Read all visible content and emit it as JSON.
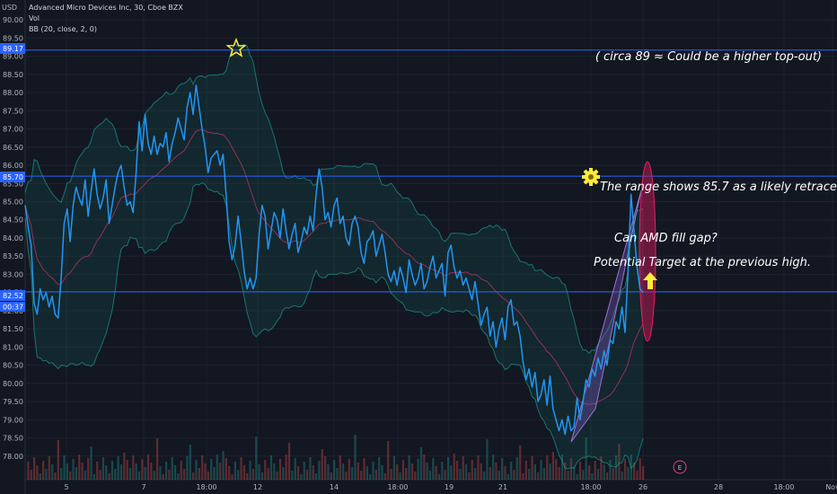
{
  "header": {
    "currency": "USD",
    "title": "Advanced Micro Devices Inc, 30, Cboe BZX",
    "vol_label": "Vol",
    "bb_label": "BB (20, close, 2, 0)"
  },
  "colors": {
    "background": "#131722",
    "price_line": "#2196f3",
    "bb_basis": "#b2365e",
    "bb_band": "#199b8f",
    "bb_fill": "#0f4a44",
    "hline": "#2962ff",
    "star": "#ffeb3b",
    "badge": "#2962ff",
    "gear": "#ffeb3b",
    "arrow": "#ffeb3b",
    "triangle": "#7e57c2",
    "ellipse": "#d81b60"
  },
  "annotations": {
    "top_note": "( circa 89 ≈ Could be a higher top-out)",
    "range_note": "The range shows 85.7 as a likely retrace.",
    "gap_question": "Can AMD fill gap?",
    "target_note": "Potential Target at the previous high."
  },
  "price_badges": {
    "level_high": "89.17",
    "level_range": "85.70",
    "level_low": "82.52",
    "countdown": "00:37"
  },
  "e_marker": "E",
  "chart_data": {
    "type": "line",
    "y_axis_ticks": [
      "90.00",
      "89.50",
      "89.00",
      "88.50",
      "88.00",
      "87.50",
      "87.00",
      "86.50",
      "86.00",
      "85.50",
      "85.00",
      "84.50",
      "84.00",
      "83.50",
      "83.00",
      "82.50",
      "82.00",
      "81.50",
      "81.00",
      "80.50",
      "80.00",
      "79.50",
      "79.00",
      "78.50",
      "78.00"
    ],
    "ylim": [
      77.7,
      90.2
    ],
    "x_ticks": [
      "5",
      "7",
      "18:00",
      "12",
      "14",
      "18:00",
      "19",
      "21",
      "18:00",
      "26",
      "28",
      "18:00",
      "Nov"
    ],
    "horizontal_levels": [
      89.17,
      85.7,
      82.52
    ],
    "series": [
      {
        "values": [
          84.9,
          84.3,
          83.8,
          82.2,
          81.9,
          82.6,
          82.3,
          82.5,
          82.1,
          82.4,
          81.9,
          81.8,
          82.9,
          84.4,
          84.8,
          83.9,
          84.9,
          85.4,
          85.1,
          84.9,
          85.6,
          84.6,
          85.3,
          85.9,
          85.2,
          84.8,
          85.1,
          85.6,
          84.4,
          84.9,
          85.4,
          85.8,
          86.0,
          85.4,
          84.9,
          85.0,
          84.7,
          85.8,
          87.2,
          86.4,
          87.4,
          86.6,
          86.3,
          86.8,
          86.3,
          86.6,
          86.5,
          86.9,
          86.1,
          86.6,
          86.9,
          87.3,
          87.0,
          86.7,
          87.6,
          88.0,
          87.4,
          88.2,
          87.6,
          87.0,
          86.5,
          85.8,
          86.2,
          86.3,
          86.4,
          86.0,
          86.3,
          85.2,
          83.9,
          83.4,
          83.8,
          84.6,
          83.9,
          83.1,
          82.6,
          82.9,
          82.6,
          82.9,
          84.1,
          84.9,
          84.6,
          83.7,
          84.2,
          84.7,
          84.5,
          84.0,
          84.8,
          84.2,
          83.7,
          84.1,
          84.4,
          83.6,
          83.9,
          84.3,
          84.1,
          84.6,
          84.2,
          85.2,
          85.9,
          85.4,
          84.5,
          84.7,
          84.3,
          84.9,
          85.1,
          84.4,
          84.6,
          84.0,
          83.8,
          84.4,
          84.6,
          84.3,
          83.6,
          83.3,
          83.9,
          84.0,
          84.2,
          83.5,
          83.8,
          84.1,
          83.6,
          83.0,
          82.8,
          83.1,
          82.7,
          83.2,
          82.9,
          82.5,
          83.4,
          83.0,
          82.7,
          82.9,
          83.3,
          82.6,
          82.8,
          83.2,
          83.5,
          82.9,
          83.1,
          83.3,
          82.4,
          83.6,
          83.8,
          83.2,
          82.9,
          83.1,
          82.7,
          82.9,
          82.6,
          82.3,
          82.8,
          82.2,
          81.6,
          81.9,
          82.1,
          81.3,
          81.7,
          81.0,
          81.5,
          81.8,
          81.2,
          82.1,
          82.3,
          81.6,
          81.7,
          81.3,
          80.6,
          80.1,
          80.4,
          79.9,
          80.3,
          79.5,
          79.7,
          80.1,
          79.4,
          80.2,
          79.3,
          79.0,
          78.7,
          79.0,
          78.6,
          79.1,
          78.7,
          78.8,
          79.6,
          79.0,
          79.5,
          80.1,
          79.9,
          80.4,
          80.2,
          80.7,
          80.4,
          80.9,
          80.5,
          81.2,
          81.1,
          81.7,
          81.5,
          82.1,
          81.4,
          83.1,
          85.2,
          84.2,
          83.2,
          82.6,
          82.5
        ],
        "start_index": 3,
        "end_index": 220
      }
    ]
  }
}
